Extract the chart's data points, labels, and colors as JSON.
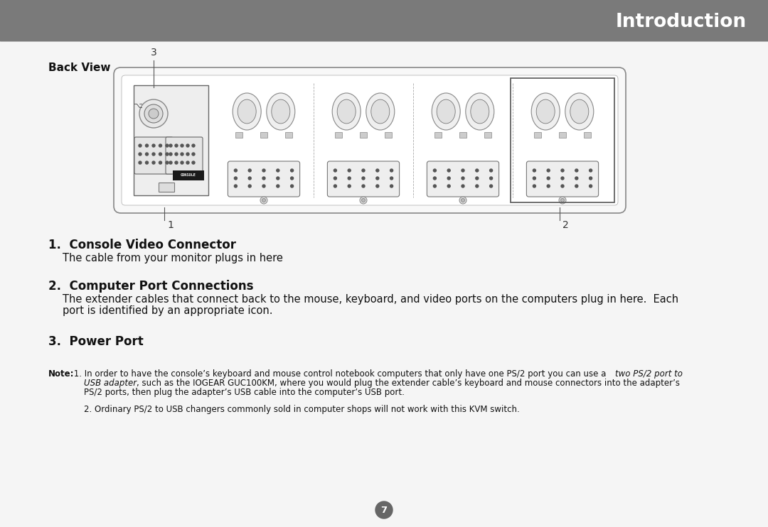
{
  "header_text": "Introduction",
  "header_bg": "#7a7a7a",
  "header_text_color": "#ffffff",
  "back_view_label": "Back View",
  "section1_title": "1.  Console Video Connector",
  "section1_body": "The cable from your monitor plugs in here",
  "section2_title": "2.  Computer Port Connections",
  "section2_body_line1": "The extender cables that connect back to the mouse, keyboard, and video ports on the computers plug in here.  Each",
  "section2_body_line2": "port is identified by an appropriate icon.",
  "section3_title": "3.  Power Port",
  "note_bold": "Note:",
  "note_line1_normal": " 1. In order to have the console’s keyboard and mouse control notebook computers that only have one PS/2 port you can use a ",
  "note_line1_italic": "two PS/2 port to",
  "note_line2_italic": "USB adapter",
  "note_line2_normal": ", such as the IOGEAR GUC100KM, where you would plug the extender cable’s keyboard and mouse connectors into the adapter’s",
  "note_line3": "PS/2 ports, then plug the adapter’s USB cable into the computer’s USB port.",
  "note_line4": "2. Ordinary PS/2 to USB changers commonly sold in computer shops will not work with this KVM switch.",
  "page_number": "7",
  "bg_color": "#f5f5f5",
  "text_color": "#111111",
  "device_bg": "#f0f0f0",
  "device_edge": "#888888",
  "label1": "1",
  "label2": "2",
  "label3": "3"
}
